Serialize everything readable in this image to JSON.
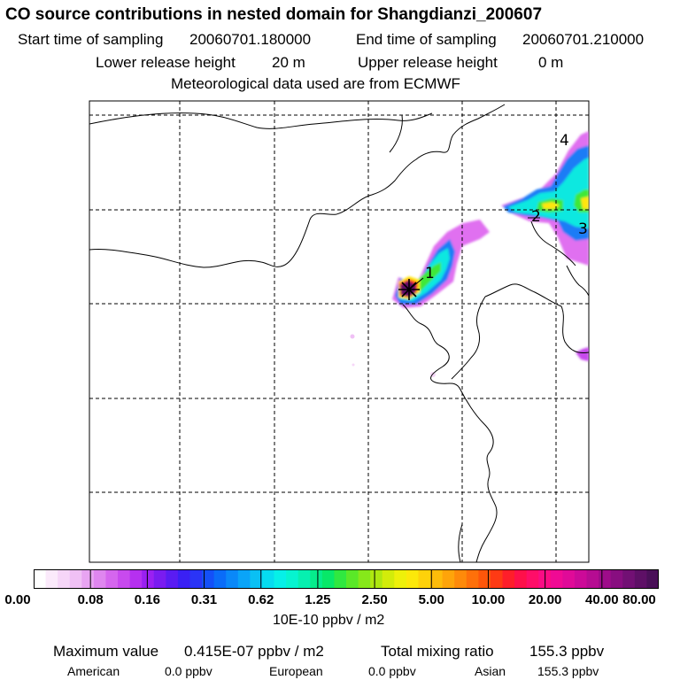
{
  "header": {
    "title": "CO  source contributions in nested domain for Shangdianzi_200607",
    "start_label": "Start time of sampling",
    "start_value": "20060701.180000",
    "end_label": "End time of sampling",
    "end_value": "20060701.210000",
    "lower_label": "Lower release height",
    "lower_value": "20 m",
    "upper_label": "Upper release height",
    "upper_value": "0 m",
    "met_line": "Meteorological data used are from ECMWF"
  },
  "map": {
    "contour_labels": [
      "1",
      "2",
      "3",
      "4"
    ],
    "receptor_marker": "plus-marker"
  },
  "colorbar": {
    "tick_labels": [
      "0.00",
      "0.08",
      "0.16",
      "0.31",
      "0.62",
      "1.25",
      "2.50",
      "5.00",
      "10.00",
      "20.00",
      "40.00",
      "80.00"
    ],
    "unit": "10E-10 ppbv / m2",
    "colors": [
      "#ffffff",
      "#fbeafb",
      "#f6d6f8",
      "#f0c0f5",
      "#e8a4f2",
      "#df86ef",
      "#d566ee",
      "#c84aee",
      "#b630f0",
      "#9a20f2",
      "#7a1cf0",
      "#5a1cf2",
      "#3a20f4",
      "#2a34f6",
      "#1450f8",
      "#0a6cf8",
      "#0a88f8",
      "#0aa4f8",
      "#0ac0f4",
      "#06dcf0",
      "#06f0e8",
      "#06f4d0",
      "#06f0b0",
      "#06ec8c",
      "#08e868",
      "#30e840",
      "#5ae828",
      "#86e81a",
      "#aee810",
      "#d2ec0a",
      "#eef00a",
      "#fce80a",
      "#fed20a",
      "#febc0a",
      "#fea40a",
      "#fe8a0a",
      "#fe700a",
      "#fe560a",
      "#fe3a14",
      "#fe1e2a",
      "#fe104a",
      "#fe0e68",
      "#fa0c84",
      "#f00a94",
      "#e00a98",
      "#cc0a98",
      "#b60c92",
      "#9e0c8a",
      "#880e80",
      "#721074",
      "#5e1066",
      "#4a1058"
    ]
  },
  "footer": {
    "max_label": "Maximum value",
    "max_value": "0.415E-07 ppbv / m2",
    "total_label": "Total mixing ratio",
    "total_value": "155.3 ppbv",
    "american_label": "American",
    "american_value": "0.0 ppbv",
    "european_label": "European",
    "european_value": "0.0 ppbv",
    "asian_label": "Asian",
    "asian_value": "155.3 ppbv"
  }
}
